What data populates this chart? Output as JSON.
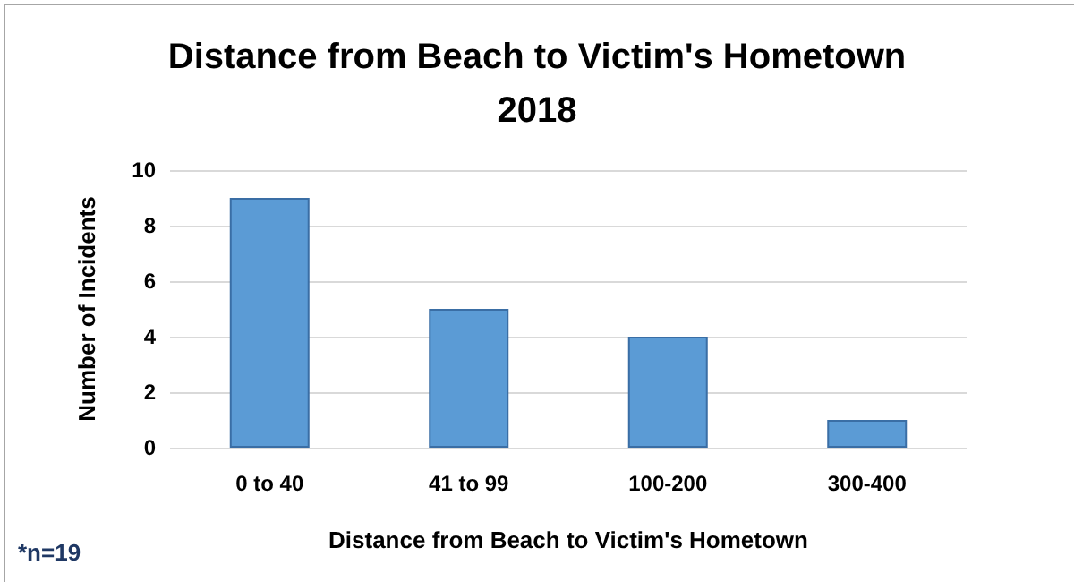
{
  "chart_data": {
    "type": "bar",
    "title": "Distance from Beach to Victim's Hometown\n2018",
    "xlabel": "Distance from Beach to Victim's Hometown",
    "ylabel": "Number of Incidents",
    "categories": [
      "0 to 40",
      "41 to 99",
      "100-200",
      "300-400"
    ],
    "values": [
      9,
      5,
      4,
      1
    ],
    "color": "#5b9bd5",
    "ylim": [
      0,
      10
    ],
    "yticks": [
      0,
      2,
      4,
      6,
      8,
      10
    ],
    "grid": "y",
    "annotations": [
      "*n=19"
    ]
  }
}
